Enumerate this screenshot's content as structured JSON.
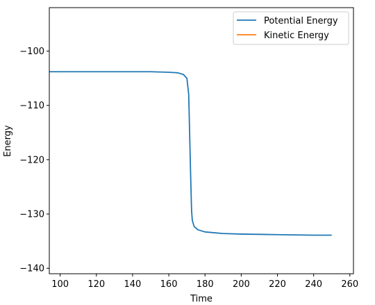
{
  "chart_data": {
    "type": "line",
    "title": "",
    "xlabel": "Time",
    "ylabel": "Energy",
    "xlim": [
      94,
      262
    ],
    "ylim": [
      -141,
      -92
    ],
    "xticks": [
      100,
      120,
      140,
      160,
      180,
      200,
      220,
      240,
      260
    ],
    "yticks": [
      -100,
      -110,
      -120,
      -130,
      -140
    ],
    "xtick_labels": [
      "100",
      "120",
      "140",
      "160",
      "180",
      "200",
      "220",
      "240",
      "260"
    ],
    "ytick_labels": [
      "−100",
      "−110",
      "−120",
      "−130",
      "−140"
    ],
    "grid": false,
    "legend_position": "top-right",
    "series": [
      {
        "name": "Potential Energy",
        "color": "#1f77b4",
        "x": [
          94,
          110,
          130,
          150,
          160,
          165,
          168,
          170,
          171,
          171.5,
          172,
          172.3,
          172.6,
          173,
          174,
          176,
          180,
          190,
          200,
          220,
          240,
          250
        ],
        "y": [
          -103.8,
          -103.8,
          -103.8,
          -103.8,
          -103.9,
          -104.0,
          -104.3,
          -105.0,
          -108.0,
          -115.0,
          -122.0,
          -126.0,
          -129.5,
          -131.2,
          -132.3,
          -132.9,
          -133.3,
          -133.6,
          -133.7,
          -133.8,
          -133.9,
          -133.9
        ]
      },
      {
        "name": "Kinetic Energy",
        "color": "#ff7f0e",
        "x": [],
        "y": []
      }
    ]
  }
}
